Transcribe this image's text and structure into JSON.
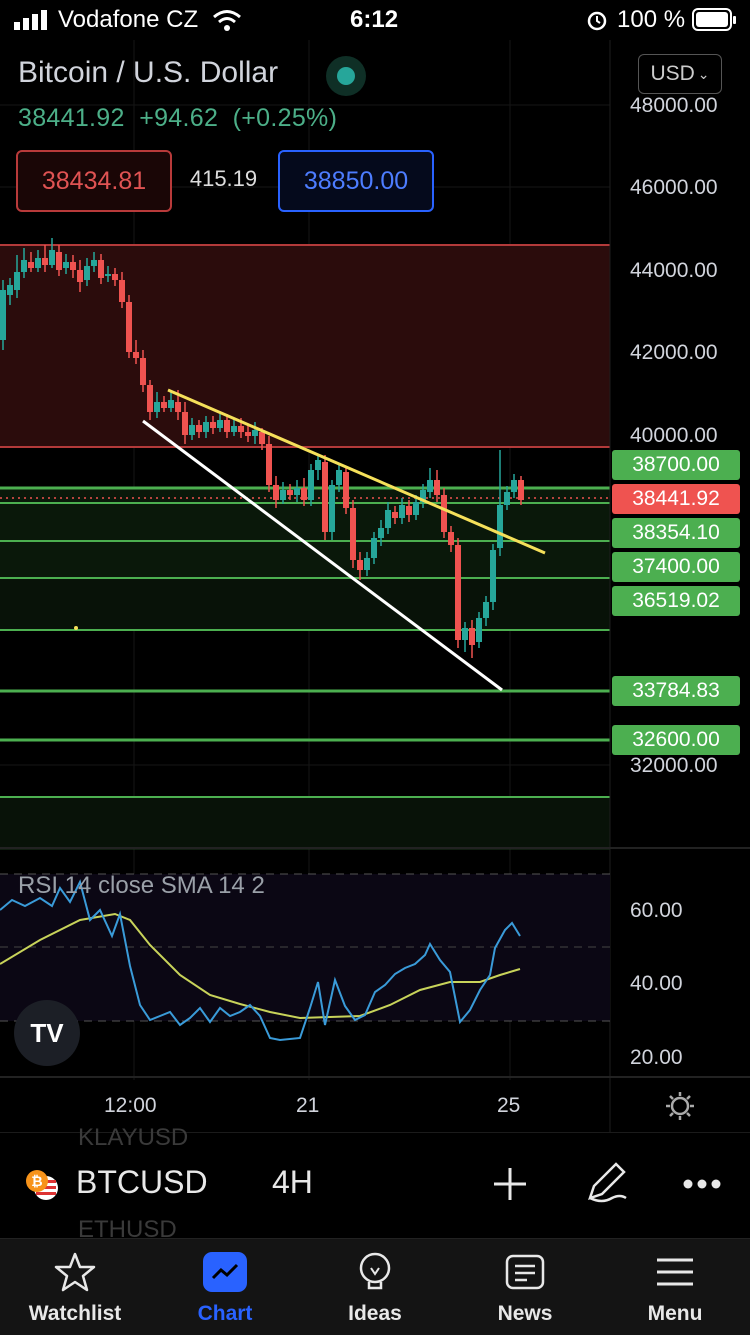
{
  "status_bar": {
    "carrier": "Vodafone CZ",
    "time": "6:12",
    "battery": "100 %"
  },
  "header": {
    "title": "Bitcoin / U.S. Dollar",
    "last_price": "38441.92",
    "change": "+94.62",
    "change_pct": "(+0.25%)",
    "sell": "38434.81",
    "spread": "415.19",
    "buy": "38850.00",
    "currency": "USD"
  },
  "price_axis": [
    "48000.00",
    "46000.00",
    "44000.00",
    "42000.00",
    "40000.00",
    "32000.00"
  ],
  "price_tags": {
    "t1": "38700.00",
    "current": "38441.92",
    "t2": "38354.10",
    "t3": "37400.00",
    "t4": "36519.02",
    "t5": "33784.83",
    "t6": "32600.00"
  },
  "rsi": {
    "label": "RSI 14 close SMA 14 2",
    "axis": [
      "60.00",
      "40.00",
      "20.00"
    ]
  },
  "time_axis": [
    "12:00",
    "21",
    "25"
  ],
  "logo_text": "TV",
  "symbol_bar": {
    "ghost_above": "KLAYUSD",
    "symbol": "BTCUSD",
    "timeframe": "4H",
    "ghost_below": "ETHUSD"
  },
  "tabs": [
    {
      "label": "Watchlist",
      "icon": "star-icon"
    },
    {
      "label": "Chart",
      "icon": "chart-icon"
    },
    {
      "label": "Ideas",
      "icon": "lightbulb-icon"
    },
    {
      "label": "News",
      "icon": "news-icon"
    },
    {
      "label": "Menu",
      "icon": "menu-icon"
    }
  ],
  "colors": {
    "up": "#26a69a",
    "down": "#ef5350",
    "accent": "#2962ff",
    "support": "#4caf50",
    "trendline_upper": "#f5e05a",
    "trendline_lower": "#ffffff",
    "rsi_line": "#3a9bd9",
    "rsi_sma": "#c8d35a"
  }
}
